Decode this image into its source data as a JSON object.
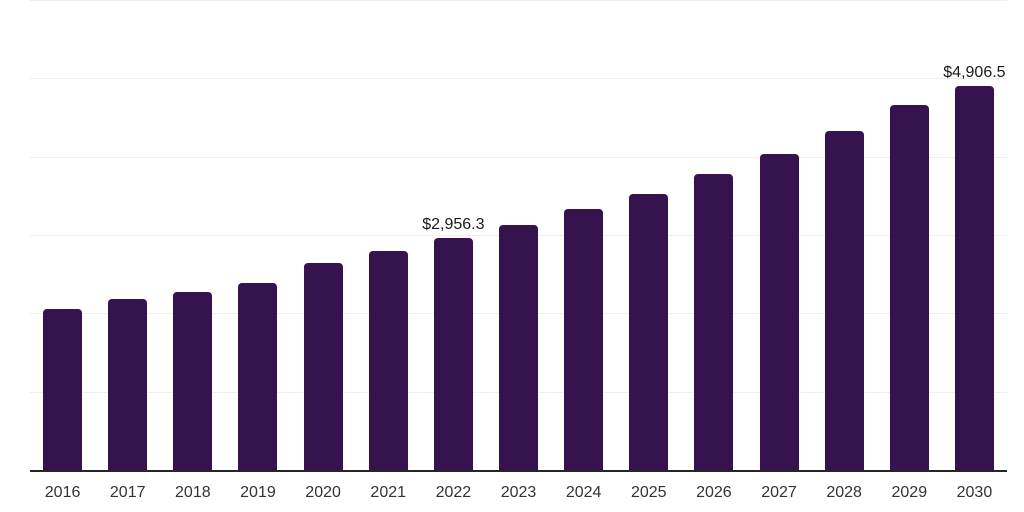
{
  "colors": {
    "background": "#ffffff",
    "bar": "#36124e",
    "gridline": "#efefef",
    "axis": "#262626",
    "tick_label": "#333333",
    "data_label": "#1a1a1a"
  },
  "chart_data": {
    "type": "bar",
    "title": "",
    "xlabel": "",
    "ylabel": "",
    "categories": [
      "2016",
      "2017",
      "2018",
      "2019",
      "2020",
      "2021",
      "2022",
      "2023",
      "2024",
      "2025",
      "2026",
      "2027",
      "2028",
      "2029",
      "2030"
    ],
    "values": [
      2050,
      2180,
      2270,
      2385,
      2640,
      2795,
      2956.3,
      3125,
      3330,
      3520,
      3775,
      4030,
      4325,
      4655,
      4906.5
    ],
    "data_labels": {
      "2022": "$2,956.3",
      "2030": "$4,906.5"
    },
    "ylim": [
      0,
      6000
    ],
    "gridline_step": 1000,
    "grid": "horizontal",
    "y_tick_labels": "none",
    "legend": "none"
  }
}
